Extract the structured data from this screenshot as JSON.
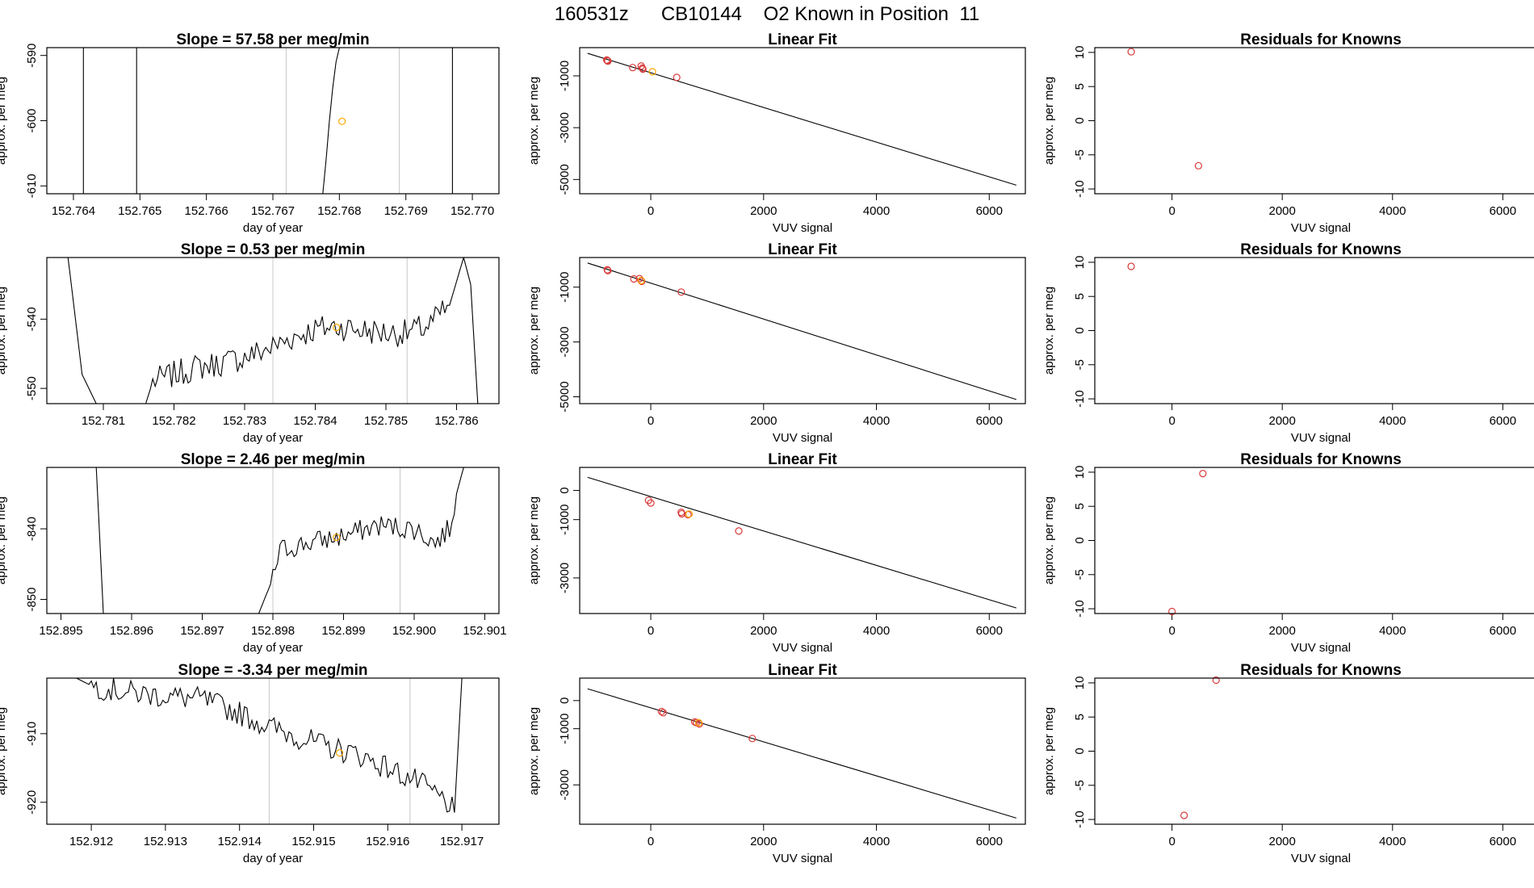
{
  "page_title": "160531z      CB10144    O2 Known in Position  11",
  "colors": {
    "trace": "#000000",
    "guide": "#c8c8c8",
    "sample_point": "#ffa500",
    "known_point": "#d93a3a",
    "fit_line": "#000000"
  },
  "chart_data": [
    {
      "type": "line",
      "panel": "slope",
      "row": 1,
      "title": "Slope =  57.58  per meg/min",
      "xlabel": "day of year",
      "ylabel": "approx. per meg",
      "xlim": [
        152.7636,
        152.7704
      ],
      "ylim": [
        -611.2,
        -588.8
      ],
      "xticks": [
        "152.764",
        "152.765",
        "152.766",
        "152.767",
        "152.768",
        "152.769",
        "152.770"
      ],
      "yticks": [
        "-590",
        "-600",
        "-610"
      ],
      "guides": [
        152.7672,
        152.7689
      ],
      "segments": [
        [
          [
            152.76415,
            -588.8
          ],
          [
            152.76415,
            -611.2
          ]
        ],
        [
          [
            152.76495,
            -588.8
          ],
          [
            152.76495,
            -611.2
          ]
        ],
        [
          [
            152.76775,
            -611.2
          ],
          [
            152.7678,
            -606
          ],
          [
            152.76785,
            -600
          ],
          [
            152.7679,
            -595
          ],
          [
            152.76795,
            -591
          ],
          [
            152.768,
            -588.8
          ]
        ],
        [
          [
            152.7697,
            -588.8
          ],
          [
            152.7697,
            -611.2
          ]
        ]
      ],
      "marker": [
        152.76804,
        -600.1
      ]
    },
    {
      "type": "line",
      "panel": "slope",
      "row": 2,
      "title": "Slope =  0.53  per meg/min",
      "xlabel": "day of year",
      "ylabel": "approx. per meg",
      "xlim": [
        152.7802,
        152.7866
      ],
      "ylim": [
        -552.2,
        -531.1
      ],
      "xticks": [
        "152.781",
        "152.782",
        "152.783",
        "152.784",
        "152.785",
        "152.786"
      ],
      "yticks": [
        "-540",
        "-550"
      ],
      "guides": [
        152.7834,
        152.7853
      ],
      "anchors": [
        [
          152.7805,
          -531.1
        ],
        [
          152.7807,
          -548
        ],
        [
          152.7809,
          -552.2
        ],
        [
          152.7816,
          -552.2
        ],
        [
          152.7817,
          -549
        ],
        [
          152.782,
          -548
        ],
        [
          152.7823,
          -547
        ],
        [
          152.7826,
          -546.5
        ],
        [
          152.783,
          -545.5
        ],
        [
          152.7834,
          -544
        ],
        [
          152.7837,
          -542.5
        ],
        [
          152.784,
          -541.5
        ],
        [
          152.7843,
          -541
        ],
        [
          152.7846,
          -541.5
        ],
        [
          152.785,
          -542
        ],
        [
          152.7853,
          -542
        ],
        [
          152.7856,
          -541
        ],
        [
          152.7859,
          -538
        ],
        [
          152.7861,
          -531.1
        ],
        [
          152.7862,
          -535
        ],
        [
          152.7863,
          -552.2
        ]
      ],
      "noise": 2.0,
      "marker": [
        152.7843,
        -541.2
      ]
    },
    {
      "type": "line",
      "panel": "slope",
      "row": 3,
      "title": "Slope =  2.46  per meg/min",
      "xlabel": "day of year",
      "ylabel": "approx. per meg",
      "xlim": [
        152.8948,
        152.9012
      ],
      "ylim": [
        -852.0,
        -831.3
      ],
      "xticks": [
        "152.895",
        "152.896",
        "152.897",
        "152.898",
        "152.899",
        "152.900",
        "152.901"
      ],
      "yticks": [
        "-840",
        "-850"
      ],
      "guides": [
        152.898,
        152.8998
      ],
      "anchors": [
        [
          152.8955,
          -831.3
        ],
        [
          152.8956,
          -852.0
        ],
        [
          152.8978,
          -852.0
        ],
        [
          152.898,
          -847
        ],
        [
          152.8981,
          -843
        ],
        [
          152.8985,
          -842
        ],
        [
          152.899,
          -841
        ],
        [
          152.8995,
          -839.5
        ],
        [
          152.9,
          -840
        ],
        [
          152.9003,
          -842
        ],
        [
          152.9005,
          -840
        ],
        [
          152.9006,
          -835
        ],
        [
          152.9007,
          -831.3
        ]
      ],
      "noise": 1.6,
      "marker": [
        152.8989,
        -841.2
      ]
    },
    {
      "type": "line",
      "panel": "slope",
      "row": 4,
      "title": "Slope =  -3.34  per meg/min",
      "xlabel": "day of year",
      "ylabel": "approx. per meg",
      "xlim": [
        152.9114,
        152.9175
      ],
      "ylim": [
        -923.2,
        -901.9
      ],
      "xticks": [
        "152.912",
        "152.913",
        "152.914",
        "152.915",
        "152.916",
        "152.917"
      ],
      "yticks": [
        "-910",
        "-920"
      ],
      "guides": [
        152.9144,
        152.9163
      ],
      "anchors": [
        [
          152.9118,
          -901.9
        ],
        [
          152.912,
          -903
        ],
        [
          152.9125,
          -904
        ],
        [
          152.913,
          -904.5
        ],
        [
          152.9135,
          -905
        ],
        [
          152.914,
          -907
        ],
        [
          152.9144,
          -909
        ],
        [
          152.9148,
          -910.5
        ],
        [
          152.9152,
          -912
        ],
        [
          152.9156,
          -913
        ],
        [
          152.916,
          -915
        ],
        [
          152.9164,
          -917
        ],
        [
          152.9168,
          -920
        ],
        [
          152.9169,
          -921.5
        ],
        [
          152.917,
          -901.9
        ]
      ],
      "noise": 1.8,
      "marker": [
        152.91535,
        -912.8
      ]
    },
    {
      "type": "scatter",
      "panel": "fit",
      "row": 1,
      "title": "Linear Fit",
      "xlabel": "VUV signal",
      "ylabel": "approx. per meg",
      "xlim": [
        -1260,
        6640
      ],
      "ylim": [
        -5550,
        90
      ],
      "xticks": [
        "0",
        "2000",
        "4000",
        "6000"
      ],
      "xtick_values": [
        0,
        2000,
        4000,
        6000
      ],
      "yticks": [
        "-1000",
        "-3000",
        "-5000"
      ],
      "ytick_values": [
        -1000,
        -3000,
        -5000
      ],
      "line": [
        [
          -1120,
          -130
        ],
        [
          6480,
          -5220
        ]
      ],
      "known_points": [
        [
          -780,
          -390
        ],
        [
          -770,
          -410
        ],
        [
          -760,
          -430
        ],
        [
          -320,
          -680
        ],
        [
          -170,
          -620
        ],
        [
          -150,
          -700
        ],
        [
          -140,
          -740
        ],
        [
          460,
          -1060
        ]
      ],
      "sample_points": [
        [
          30,
          -840
        ]
      ]
    },
    {
      "type": "scatter",
      "panel": "fit",
      "row": 2,
      "title": "Linear Fit",
      "xlabel": "VUV signal",
      "ylabel": "approx. per meg",
      "xlim": [
        -1260,
        6640
      ],
      "ylim": [
        -5250,
        80
      ],
      "xticks": [
        "0",
        "2000",
        "4000",
        "6000"
      ],
      "xtick_values": [
        0,
        2000,
        4000,
        6000
      ],
      "yticks": [
        "-1000",
        "-3000",
        "-5000"
      ],
      "ytick_values": [
        -1000,
        -3000,
        -5000
      ],
      "line": [
        [
          -1120,
          -120
        ],
        [
          6480,
          -5100
        ]
      ],
      "known_points": [
        [
          -770,
          -370
        ],
        [
          -760,
          -400
        ],
        [
          -300,
          -700
        ],
        [
          -200,
          -690
        ],
        [
          -160,
          -790
        ],
        [
          540,
          -1180
        ]
      ],
      "sample_points": [
        [
          -170,
          -760
        ]
      ]
    },
    {
      "type": "scatter",
      "panel": "fit",
      "row": 3,
      "title": "Linear Fit",
      "xlabel": "VUV signal",
      "ylabel": "approx. per meg",
      "xlim": [
        -1260,
        6640
      ],
      "ylim": [
        -4220,
        790
      ],
      "xticks": [
        "0",
        "2000",
        "4000",
        "6000"
      ],
      "xtick_values": [
        0,
        2000,
        4000,
        6000
      ],
      "yticks": [
        "0",
        "-1000",
        "-3000"
      ],
      "ytick_values": [
        0,
        -1000,
        -3000
      ],
      "line": [
        [
          -1120,
          450
        ],
        [
          6480,
          -4030
        ]
      ],
      "known_points": [
        [
          -40,
          -340
        ],
        [
          0,
          -430
        ],
        [
          540,
          -750
        ],
        [
          550,
          -800
        ],
        [
          660,
          -830
        ],
        [
          1560,
          -1390
        ]
      ],
      "sample_points": [
        [
          680,
          -810
        ]
      ]
    },
    {
      "type": "scatter",
      "panel": "fit",
      "row": 4,
      "title": "Linear Fit",
      "xlabel": "VUV signal",
      "ylabel": "approx. per meg",
      "xlim": [
        -1260,
        6640
      ],
      "ylim": [
        -4400,
        800
      ],
      "xticks": [
        "0",
        "2000",
        "4000",
        "6000"
      ],
      "xtick_values": [
        0,
        2000,
        4000,
        6000
      ],
      "yticks": [
        "0",
        "-1000",
        "-3000"
      ],
      "ytick_values": [
        0,
        -1000,
        -3000
      ],
      "line": [
        [
          -1120,
          420
        ],
        [
          6480,
          -4180
        ]
      ],
      "known_points": [
        [
          190,
          -390
        ],
        [
          220,
          -430
        ],
        [
          780,
          -760
        ],
        [
          810,
          -780
        ],
        [
          860,
          -830
        ],
        [
          1800,
          -1350
        ]
      ],
      "sample_points": [
        [
          850,
          -790
        ]
      ]
    },
    {
      "type": "scatter",
      "panel": "residuals",
      "row": 1,
      "title": "Residuals for Knowns",
      "xlabel": "VUV signal",
      "ylabel": "approx. per meg",
      "xlim": [
        -1400,
        6800
      ],
      "ylim": [
        -10.7,
        10.7
      ],
      "xticks": [
        "0",
        "2000",
        "4000",
        "6000"
      ],
      "xtick_values": [
        0,
        2000,
        4000,
        6000
      ],
      "yticks": [
        "10",
        "5",
        "0",
        "-5",
        "-10"
      ],
      "ytick_values": [
        10,
        5,
        0,
        -5,
        -10
      ],
      "known_points": [
        [
          -740,
          10.1
        ],
        [
          480,
          -6.6
        ]
      ]
    },
    {
      "type": "scatter",
      "panel": "residuals",
      "row": 2,
      "title": "Residuals for Knowns",
      "xlabel": "VUV signal",
      "ylabel": "approx. per meg",
      "xlim": [
        -1400,
        6800
      ],
      "ylim": [
        -10.7,
        10.7
      ],
      "xticks": [
        "0",
        "2000",
        "4000",
        "6000"
      ],
      "xtick_values": [
        0,
        2000,
        4000,
        6000
      ],
      "yticks": [
        "10",
        "5",
        "0",
        "-5",
        "-10"
      ],
      "ytick_values": [
        10,
        5,
        0,
        -5,
        -10
      ],
      "known_points": [
        [
          -740,
          9.4
        ]
      ]
    },
    {
      "type": "scatter",
      "panel": "residuals",
      "row": 3,
      "title": "Residuals for Knowns",
      "xlabel": "VUV signal",
      "ylabel": "approx. per meg",
      "xlim": [
        -1400,
        6800
      ],
      "ylim": [
        -10.7,
        10.7
      ],
      "xticks": [
        "0",
        "2000",
        "4000",
        "6000"
      ],
      "xtick_values": [
        0,
        2000,
        4000,
        6000
      ],
      "yticks": [
        "10",
        "5",
        "0",
        "-5",
        "-10"
      ],
      "ytick_values": [
        10,
        5,
        0,
        -5,
        -10
      ],
      "known_points": [
        [
          560,
          9.8
        ],
        [
          0,
          -10.4
        ]
      ]
    },
    {
      "type": "scatter",
      "panel": "residuals",
      "row": 4,
      "title": "Residuals for Knowns",
      "xlabel": "VUV signal",
      "ylabel": "approx. per meg",
      "xlim": [
        -1400,
        6800
      ],
      "ylim": [
        -10.7,
        10.7
      ],
      "xticks": [
        "0",
        "2000",
        "4000",
        "6000"
      ],
      "xtick_values": [
        0,
        2000,
        4000,
        6000
      ],
      "yticks": [
        "10",
        "5",
        "0",
        "-5",
        "-10"
      ],
      "ytick_values": [
        10,
        5,
        0,
        -5,
        -10
      ],
      "known_points": [
        [
          800,
          10.4
        ],
        [
          220,
          -9.4
        ]
      ]
    }
  ]
}
